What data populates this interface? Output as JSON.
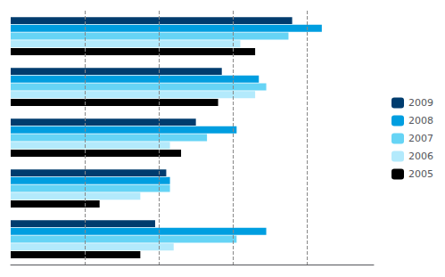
{
  "chart_data": {
    "type": "bar",
    "orientation": "horizontal",
    "categories": [
      null,
      null,
      null,
      null,
      null
    ],
    "series": [
      {
        "name": "2009",
        "color": "#003c6e",
        "values": [
          380,
          285,
          250,
          210,
          195
        ]
      },
      {
        "name": "2008",
        "color": "#009ee0",
        "values": [
          420,
          335,
          305,
          215,
          345
        ]
      },
      {
        "name": "2007",
        "color": "#66d4f5",
        "values": [
          375,
          345,
          265,
          215,
          305
        ]
      },
      {
        "name": "2006",
        "color": "#b3eafc",
        "values": [
          310,
          330,
          215,
          175,
          220
        ]
      },
      {
        "name": "2005",
        "color": "#000000",
        "values": [
          330,
          280,
          230,
          120,
          175
        ]
      }
    ],
    "xlim": [
      0,
      490
    ],
    "xticks": [
      100,
      200,
      300,
      400
    ],
    "grid": true,
    "legend": "right",
    "tick_labels": false
  }
}
